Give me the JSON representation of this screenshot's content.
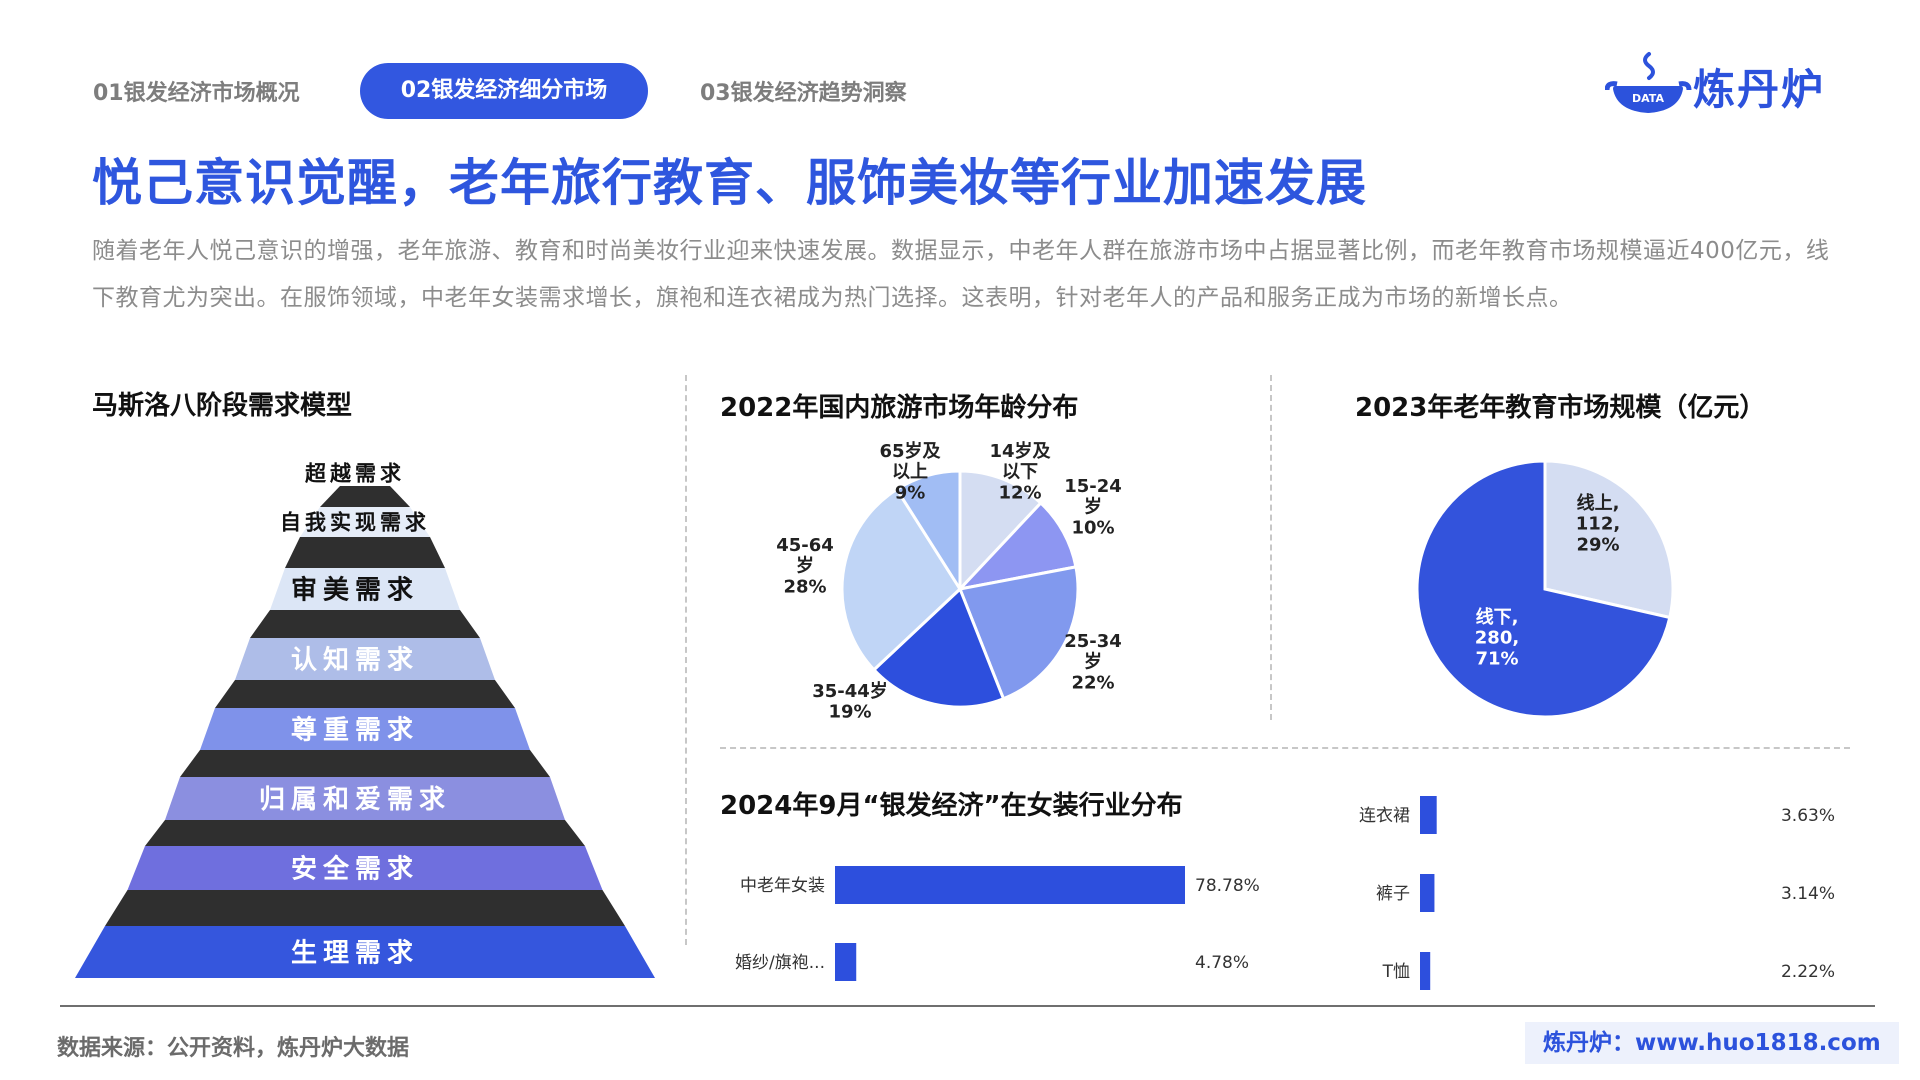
{
  "tabs": [
    {
      "label": "01银发经济市场概况"
    },
    {
      "label": "02银发经济细分市场"
    },
    {
      "label": "03银发经济趋势洞察"
    }
  ],
  "logo": {
    "badge": "DATA",
    "name": "炼丹炉"
  },
  "title": "悦己意识觉醒，老年旅行教育、服饰美妆等行业加速发展",
  "intro": "随着老年人悦己意识的增强，老年旅游、教育和时尚美妆行业迎来快速发展。数据显示，中老年人群在旅游市场中占据显著比例，而老年教育市场规模逼近400亿元，线下教育尤为突出。在服饰领域，中老年女装需求增长，旗袍和连衣裙成为热门选择。这表明，针对老年人的产品和服务正成为市场的新增长点。",
  "pyramid": {
    "title": "马斯洛八阶段需求模型",
    "levels": [
      "超越需求",
      "自我实现需求",
      "审美需求",
      "认知需求",
      "尊重需求",
      "归属和爱需求",
      "安全需求",
      "生理需求"
    ]
  },
  "chart_data": [
    {
      "type": "pie",
      "title": "2022年国内旅游市场年龄分布",
      "categories": [
        "14岁及以下",
        "15-24岁",
        "25-34岁",
        "35-44岁",
        "45-64岁",
        "65岁及以上"
      ],
      "values": [
        12,
        10,
        22,
        19,
        28,
        9
      ],
      "unit": "%",
      "colors": [
        "#d4ddf2",
        "#8d96f2",
        "#8199ee",
        "#2d4fdd",
        "#c0d5f6",
        "#a1bdf4"
      ]
    },
    {
      "type": "pie",
      "title": "2023年老年教育市场规模（亿元）",
      "categories": [
        "线上",
        "线下"
      ],
      "values": [
        112,
        280
      ],
      "percent": [
        29,
        71
      ],
      "colors": [
        "#d4ddf2",
        "#3353dc"
      ]
    },
    {
      "type": "bar",
      "orientation": "horizontal",
      "title": "2024年9月“银发经济”在女装行业分布",
      "categories": [
        "中老年女装",
        "婚纱/旗袍...",
        "连衣裙",
        "裤子",
        "T恤"
      ],
      "values": [
        78.78,
        4.78,
        3.63,
        3.14,
        2.22
      ],
      "unit": "%",
      "color": "#2d4fdd"
    }
  ],
  "footer": {
    "source": "数据来源：公开资料，炼丹炉大数据",
    "site": "炼丹炉：www.huo1818.com"
  }
}
